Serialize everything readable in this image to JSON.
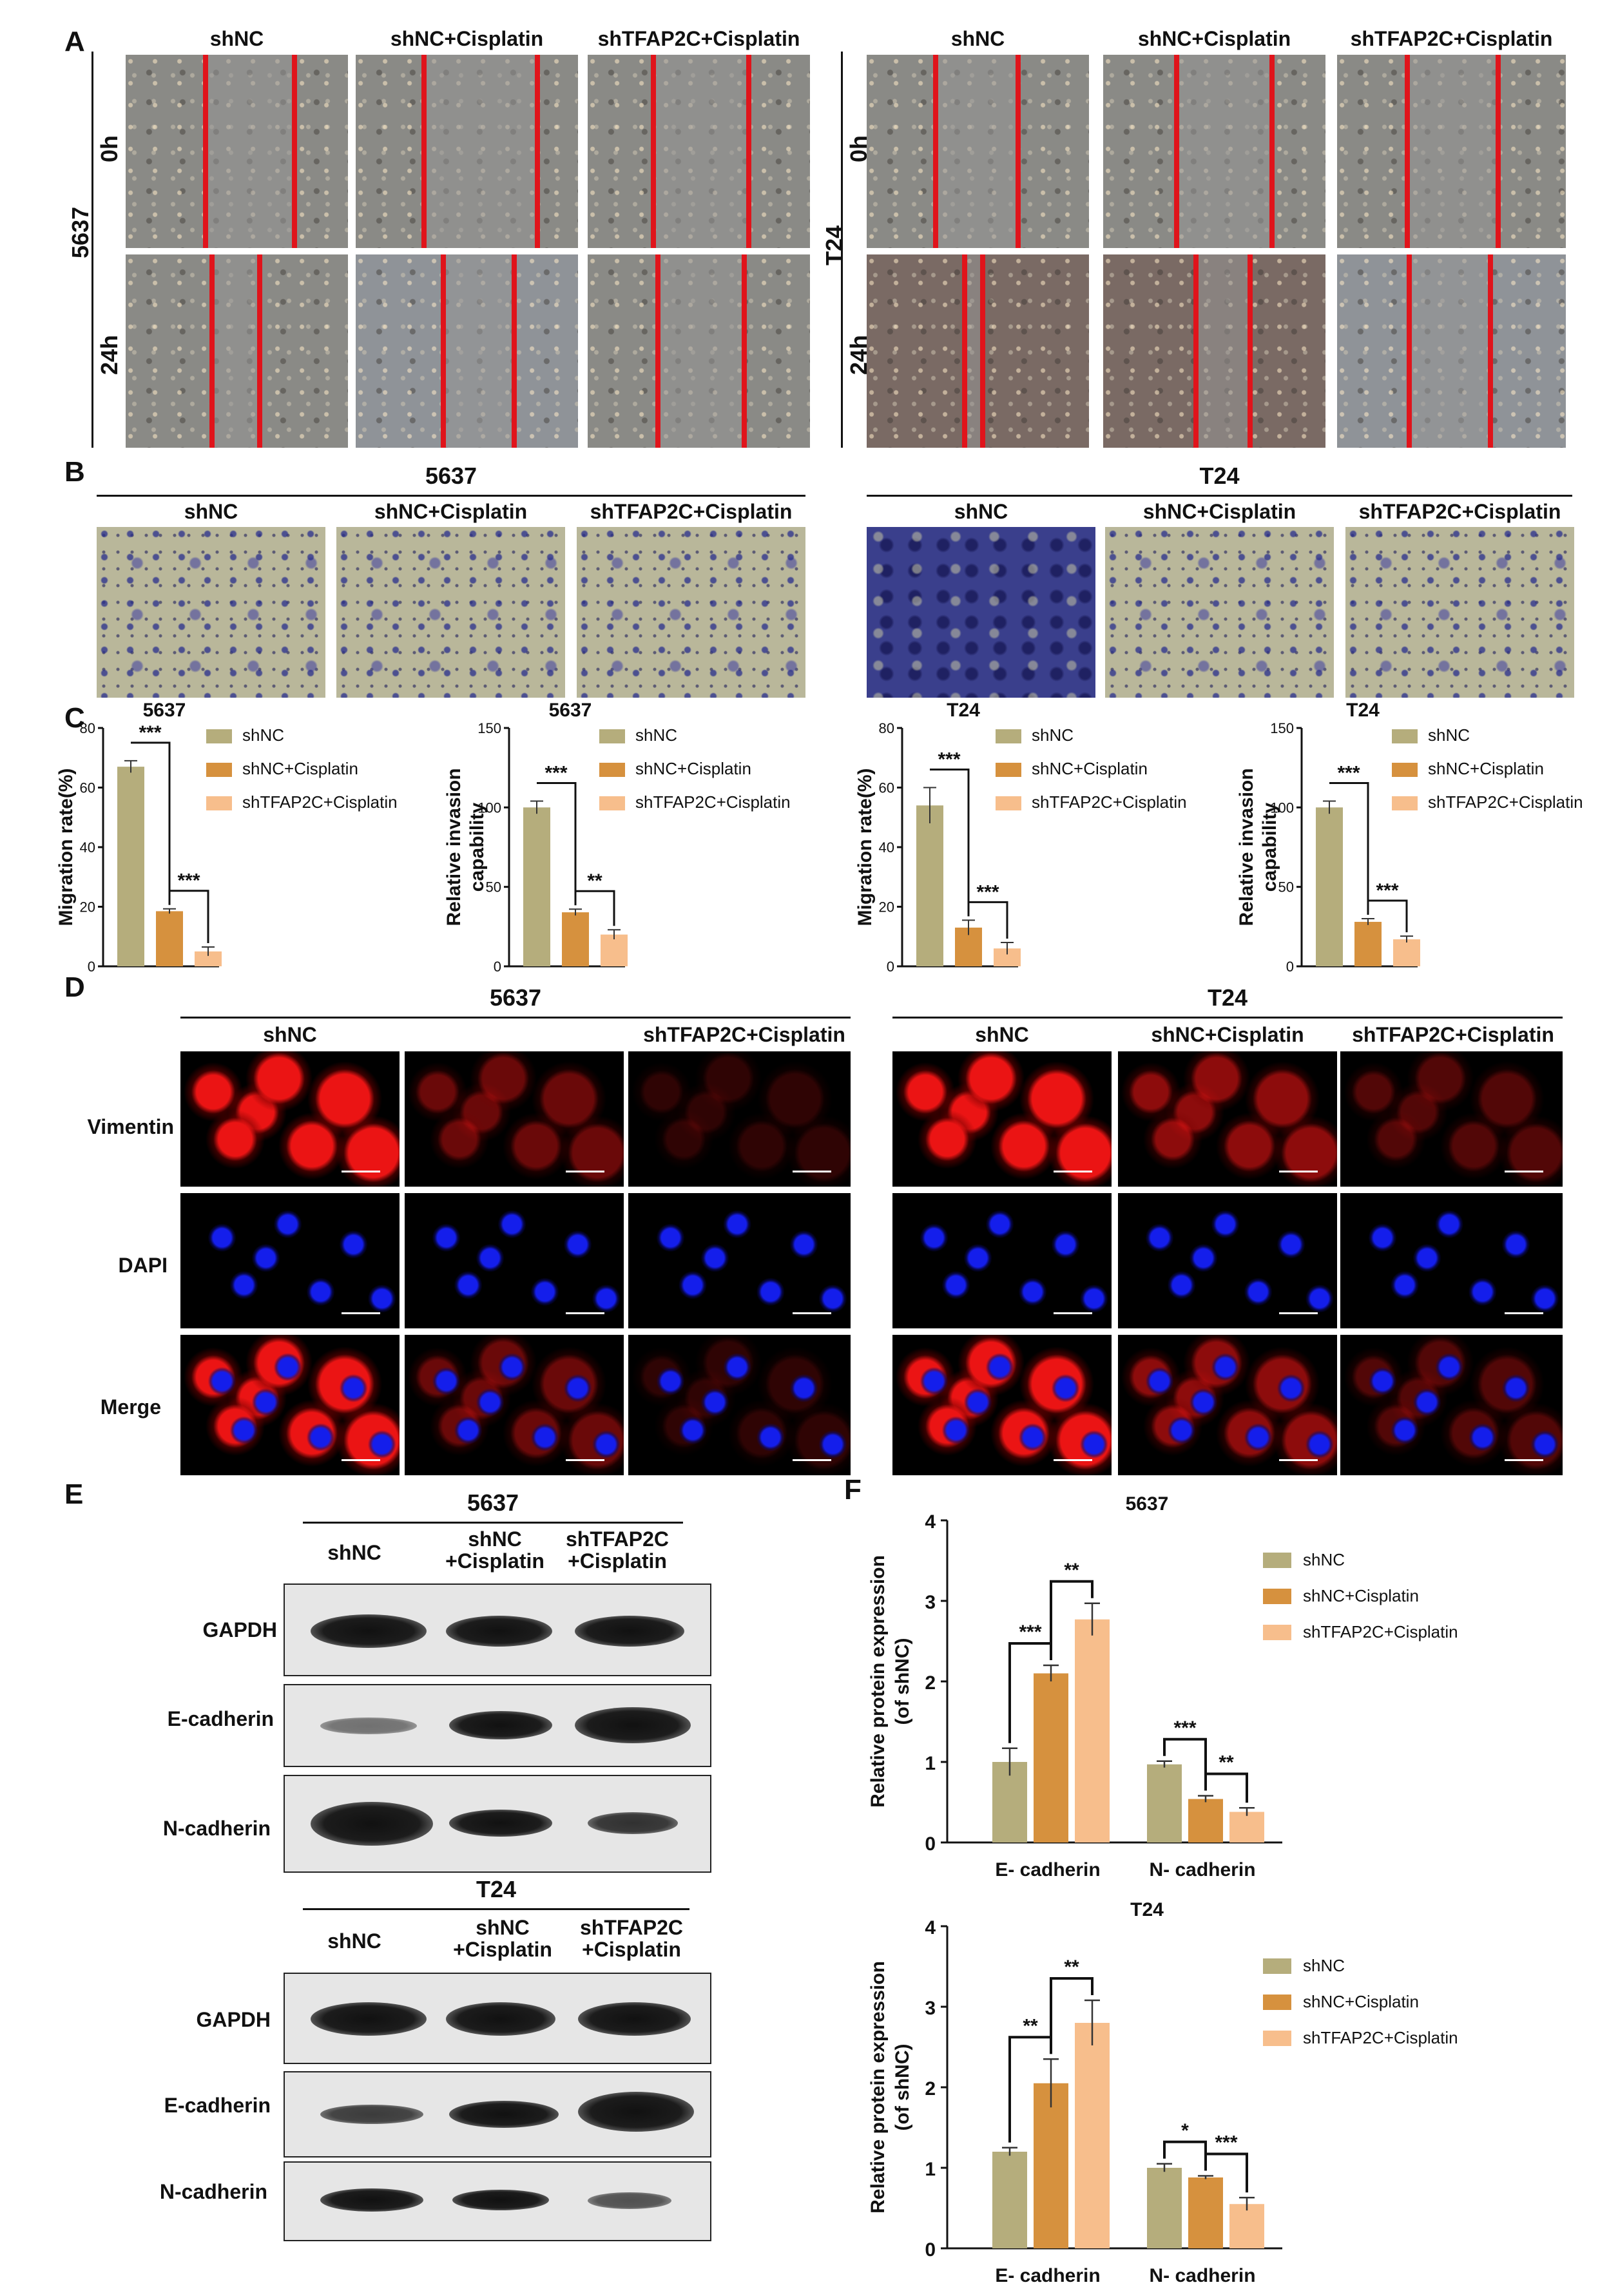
{
  "panels": {
    "A": "A",
    "B": "B",
    "C": "C",
    "D": "D",
    "E": "E",
    "F": "F"
  },
  "groups3": [
    "shNC",
    "shNC+Cisplatin",
    "shTFAP2C+Cisplatin"
  ],
  "panel_a": {
    "timepoints": [
      "0h",
      "24h"
    ],
    "cell_lines": [
      "5637",
      "T24"
    ]
  },
  "panel_b": {
    "cell_lines": [
      "5637",
      "T24"
    ]
  },
  "panel_d": {
    "titles": [
      "5637",
      "T24"
    ],
    "left_headers": [
      "shNC",
      "shTFAP2C+Cisplatin"
    ],
    "right_headers": [
      "shNC",
      "shNC+Cisplatin",
      "shTFAP2C+Cisplatin"
    ],
    "rows": [
      "Vimentin",
      "DAPI",
      "Merge"
    ]
  },
  "panel_e": {
    "titles": [
      "5637",
      "T24"
    ],
    "lanes": [
      "shNC",
      "shNC\n+Cisplatin",
      "shTFAP2C\n+Cisplatin"
    ],
    "proteins": [
      "GAPDH",
      "E-cadherin",
      "N-cadherin"
    ]
  },
  "colors": {
    "shNC": "#b5ad7c",
    "shNC+Cisplatin": "#d6913e",
    "shTFAP2C+Cisplatin": "#f7be8c"
  },
  "chart_data": [
    {
      "type": "bar",
      "title": "5637",
      "ylabel": "Migration rate(%)",
      "ylim": [
        0,
        80
      ],
      "yticks": [
        0,
        20,
        40,
        60,
        80
      ],
      "categories": [
        "shNC",
        "shNC+Cisplatin",
        "shTFAP2C+Cisplatin"
      ],
      "values": [
        67,
        18.5,
        5
      ],
      "errors": [
        2,
        0.8,
        1.5
      ],
      "significance": [
        {
          "from": 0,
          "to": 1,
          "label": "***"
        },
        {
          "from": 1,
          "to": 2,
          "label": "***"
        }
      ]
    },
    {
      "type": "bar",
      "title": "5637",
      "ylabel": "Relative invasion capability",
      "ylim": [
        0,
        150
      ],
      "yticks": [
        0,
        50,
        100,
        150
      ],
      "categories": [
        "shNC",
        "shNC+Cisplatin",
        "shTFAP2C+Cisplatin"
      ],
      "values": [
        100,
        34,
        20
      ],
      "errors": [
        4,
        2,
        3
      ],
      "significance": [
        {
          "from": 0,
          "to": 1,
          "label": "***"
        },
        {
          "from": 1,
          "to": 2,
          "label": "**"
        }
      ]
    },
    {
      "type": "bar",
      "title": "T24",
      "ylabel": "Migration rate(%)",
      "ylim": [
        0,
        80
      ],
      "yticks": [
        0,
        20,
        40,
        60,
        80
      ],
      "categories": [
        "shNC",
        "shNC+Cisplatin",
        "shTFAP2C+Cisplatin"
      ],
      "values": [
        54,
        13,
        6
      ],
      "errors": [
        6,
        2.5,
        2
      ],
      "significance": [
        {
          "from": 0,
          "to": 1,
          "label": "***"
        },
        {
          "from": 1,
          "to": 2,
          "label": "***"
        }
      ]
    },
    {
      "type": "bar",
      "title": "T24",
      "ylabel": "Relative invasion capability",
      "ylim": [
        0,
        150
      ],
      "yticks": [
        0,
        50,
        100,
        150
      ],
      "categories": [
        "shNC",
        "shNC+Cisplatin",
        "shTFAP2C+Cisplatin"
      ],
      "values": [
        100,
        28,
        17
      ],
      "errors": [
        4,
        2,
        2
      ],
      "significance": [
        {
          "from": 0,
          "to": 1,
          "label": "***"
        },
        {
          "from": 1,
          "to": 2,
          "label": "***"
        }
      ]
    },
    {
      "type": "bar",
      "title": "5637",
      "ylabel": "Relative protein expression (of shNC)",
      "ylim": [
        0,
        4
      ],
      "yticks": [
        0,
        1,
        2,
        3,
        4
      ],
      "categories": [
        "E- cadherin",
        "N- cadherin"
      ],
      "series": [
        {
          "name": "shNC",
          "values": [
            1.0,
            0.97
          ],
          "errors": [
            0.17,
            0.04
          ]
        },
        {
          "name": "shNC+Cisplatin",
          "values": [
            2.1,
            0.54
          ],
          "errors": [
            0.1,
            0.04
          ]
        },
        {
          "name": "shTFAP2C+Cisplatin",
          "values": [
            2.77,
            0.38
          ],
          "errors": [
            0.2,
            0.05
          ]
        }
      ],
      "significance": [
        {
          "cat": 0,
          "from": 0,
          "to": 1,
          "label": "***"
        },
        {
          "cat": 0,
          "from": 1,
          "to": 2,
          "label": "**"
        },
        {
          "cat": 1,
          "from": 0,
          "to": 1,
          "label": "***"
        },
        {
          "cat": 1,
          "from": 1,
          "to": 2,
          "label": "**"
        }
      ]
    },
    {
      "type": "bar",
      "title": "T24",
      "ylabel": "Relative protein expression (of shNC)",
      "ylim": [
        0,
        4
      ],
      "yticks": [
        0,
        1,
        2,
        3,
        4
      ],
      "categories": [
        "E- cadherin",
        "N- cadherin"
      ],
      "series": [
        {
          "name": "shNC",
          "values": [
            1.2,
            1.0
          ],
          "errors": [
            0.05,
            0.05
          ]
        },
        {
          "name": "shNC+Cisplatin",
          "values": [
            2.05,
            0.88
          ],
          "errors": [
            0.3,
            0.02
          ]
        },
        {
          "name": "shTFAP2C+Cisplatin",
          "values": [
            2.8,
            0.55
          ],
          "errors": [
            0.28,
            0.08
          ]
        }
      ],
      "significance": [
        {
          "cat": 0,
          "from": 0,
          "to": 1,
          "label": "**"
        },
        {
          "cat": 0,
          "from": 1,
          "to": 2,
          "label": "**"
        },
        {
          "cat": 1,
          "from": 0,
          "to": 1,
          "label": "*"
        },
        {
          "cat": 1,
          "from": 1,
          "to": 2,
          "label": "***"
        }
      ]
    }
  ]
}
